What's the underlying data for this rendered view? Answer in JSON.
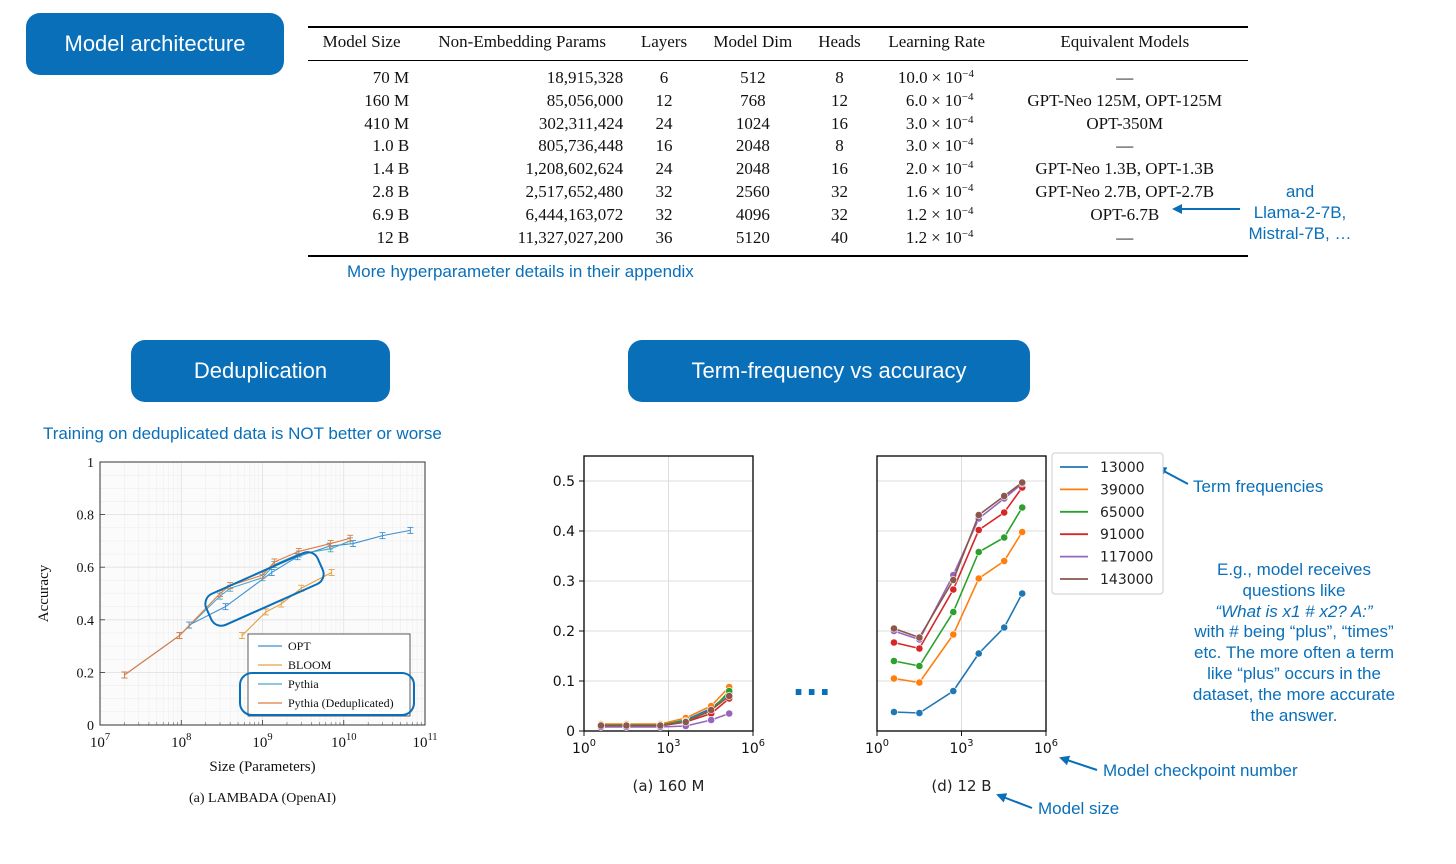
{
  "sections": {
    "model_architecture": "Model architecture",
    "deduplication": "Deduplication",
    "term_frequency": "Term-frequency vs accuracy"
  },
  "hyperparameters": {
    "headers": [
      "Model Size",
      "Non-Embedding Params",
      "Layers",
      "Model Dim",
      "Heads",
      "Learning Rate",
      "Equivalent Models"
    ],
    "lr_times": "×",
    "lr_base": "10",
    "lr_exp": "−4",
    "rows": [
      {
        "size": "70 M",
        "params": "18,915,328",
        "layers": "6",
        "dim": "512",
        "heads": "8",
        "lr": "10.0",
        "equiv": "—"
      },
      {
        "size": "160 M",
        "params": "85,056,000",
        "layers": "12",
        "dim": "768",
        "heads": "12",
        "lr": "6.0",
        "equiv": "GPT-Neo 125M, OPT-125M"
      },
      {
        "size": "410 M",
        "params": "302,311,424",
        "layers": "24",
        "dim": "1024",
        "heads": "16",
        "lr": "3.0",
        "equiv": "OPT-350M"
      },
      {
        "size": "1.0 B",
        "params": "805,736,448",
        "layers": "16",
        "dim": "2048",
        "heads": "8",
        "lr": "3.0",
        "equiv": "—"
      },
      {
        "size": "1.4 B",
        "params": "1,208,602,624",
        "layers": "24",
        "dim": "2048",
        "heads": "16",
        "lr": "2.0",
        "equiv": "GPT-Neo 1.3B, OPT-1.3B"
      },
      {
        "size": "2.8 B",
        "params": "2,517,652,480",
        "layers": "32",
        "dim": "2560",
        "heads": "32",
        "lr": "1.6",
        "equiv": "GPT-Neo 2.7B, OPT-2.7B"
      },
      {
        "size": "6.9 B",
        "params": "6,444,163,072",
        "layers": "32",
        "dim": "4096",
        "heads": "32",
        "lr": "1.2",
        "equiv": "OPT-6.7B"
      },
      {
        "size": "12 B",
        "params": "11,327,027,200",
        "layers": "36",
        "dim": "5120",
        "heads": "40",
        "lr": "1.2",
        "equiv": "—"
      }
    ]
  },
  "notes": {
    "appendix": "More hyperparameter details in their appendix",
    "and_models": [
      "and",
      "Llama-2-7B,",
      "Mistral-7B, …"
    ],
    "dedup": "Training on deduplicated data is NOT better or worse",
    "term_frequencies": "Term frequencies",
    "example": [
      "E.g., model receives",
      "questions like",
      "“What is x1 # x2? A:”",
      "with # being “plus”, “times”",
      "etc. The more often a term",
      "like “plus” occurs in the",
      "dataset, the more accurate",
      "the answer."
    ],
    "checkpoint": "Model checkpoint number",
    "model_size": "Model size",
    "ellipsis": "..."
  },
  "colors": {
    "accent": "#0a6fb9",
    "opt": "#3d8fd1",
    "bloom": "#e3a040",
    "pythia": "#4aa8c8",
    "pythia_dedup": "#e07a3e",
    "series": [
      "#1f77b4",
      "#ff7f0e",
      "#2ca02c",
      "#d62728",
      "#9467bd",
      "#8c564b"
    ]
  },
  "chart_data": [
    {
      "type": "line",
      "title": "(a) LAMBADA (OpenAI)",
      "xlabel": "Size (Parameters)",
      "ylabel": "Accuracy",
      "xscale": "log",
      "xlim": [
        10000000,
        100000000000
      ],
      "ylim": [
        0,
        1
      ],
      "xticks": [
        {
          "v": 10000000,
          "base": "10",
          "exp": "7"
        },
        {
          "v": 100000000,
          "base": "10",
          "exp": "8"
        },
        {
          "v": 1000000000,
          "base": "10",
          "exp": "9"
        },
        {
          "v": 10000000000,
          "base": "10",
          "exp": "10"
        },
        {
          "v": 100000000000,
          "base": "10",
          "exp": "11"
        }
      ],
      "yticks": [
        0.0,
        0.2,
        0.4,
        0.6,
        0.8,
        1.0
      ],
      "grid": true,
      "legend_position": "lower-right",
      "series": [
        {
          "name": "OPT",
          "color": "#3d8fd1",
          "x": [
            125000000,
            350000000,
            1300000000,
            2700000000,
            6700000000,
            13000000000,
            30000000000,
            66000000000
          ],
          "y": [
            0.38,
            0.45,
            0.58,
            0.64,
            0.68,
            0.69,
            0.72,
            0.74
          ]
        },
        {
          "name": "BLOOM",
          "color": "#e3a040",
          "x": [
            560000000,
            1100000000,
            1700000000,
            3000000000,
            7100000000
          ],
          "y": [
            0.34,
            0.43,
            0.46,
            0.52,
            0.58
          ]
        },
        {
          "name": "Pythia",
          "color": "#4aa8c8",
          "x": [
            20000000,
            95000000,
            300000000,
            400000000,
            1000000000,
            1400000000,
            2800000000,
            6900000000,
            12000000000
          ],
          "y": [
            0.19,
            0.34,
            0.49,
            0.52,
            0.56,
            0.61,
            0.65,
            0.67,
            0.7
          ]
        },
        {
          "name": "Pythia (Deduplicated)",
          "color": "#e07a3e",
          "x": [
            20000000,
            95000000,
            300000000,
            400000000,
            1000000000,
            1400000000,
            2800000000,
            6900000000,
            12000000000
          ],
          "y": [
            0.19,
            0.34,
            0.5,
            0.53,
            0.57,
            0.62,
            0.66,
            0.69,
            0.71
          ]
        }
      ]
    },
    {
      "type": "line",
      "title": "(a) 160 M",
      "xscale": "log",
      "xlim": [
        1,
        1000000
      ],
      "ylim": [
        0,
        0.55
      ],
      "xticks": [
        {
          "v": 1,
          "base": "10",
          "exp": "0"
        },
        {
          "v": 1000,
          "base": "10",
          "exp": "3"
        },
        {
          "v": 1000000,
          "base": "10",
          "exp": "6"
        }
      ],
      "yticks": [
        0.0,
        0.1,
        0.2,
        0.3,
        0.4,
        0.5
      ],
      "grid": true,
      "x": [
        4,
        32,
        512,
        4096,
        32768,
        143000
      ],
      "series": [
        {
          "name": "13000",
          "values": [
            0.012,
            0.012,
            0.012,
            0.022,
            0.045,
            0.075
          ]
        },
        {
          "name": "39000",
          "values": [
            0.014,
            0.014,
            0.014,
            0.026,
            0.05,
            0.088
          ]
        },
        {
          "name": "65000",
          "values": [
            0.012,
            0.012,
            0.012,
            0.02,
            0.04,
            0.08
          ]
        },
        {
          "name": "91000",
          "values": [
            0.01,
            0.01,
            0.01,
            0.018,
            0.035,
            0.065
          ]
        },
        {
          "name": "117000",
          "values": [
            0.008,
            0.008,
            0.008,
            0.01,
            0.022,
            0.035
          ]
        },
        {
          "name": "143000",
          "values": [
            0.011,
            0.011,
            0.011,
            0.018,
            0.042,
            0.07
          ]
        }
      ]
    },
    {
      "type": "line",
      "title": "(d) 12 B",
      "xscale": "log",
      "xlim": [
        1,
        1000000
      ],
      "ylim": [
        0,
        0.55
      ],
      "xticks": [
        {
          "v": 1,
          "base": "10",
          "exp": "0"
        },
        {
          "v": 1000,
          "base": "10",
          "exp": "3"
        },
        {
          "v": 1000000,
          "base": "10",
          "exp": "6"
        }
      ],
      "grid": true,
      "legend_position": "right-outside",
      "x": [
        4,
        32,
        512,
        4096,
        32768,
        143000
      ],
      "series": [
        {
          "name": "13000",
          "values": [
            0.038,
            0.036,
            0.08,
            0.155,
            0.207,
            0.275
          ]
        },
        {
          "name": "39000",
          "values": [
            0.105,
            0.097,
            0.193,
            0.305,
            0.34,
            0.398
          ]
        },
        {
          "name": "65000",
          "values": [
            0.14,
            0.13,
            0.238,
            0.358,
            0.387,
            0.447
          ]
        },
        {
          "name": "91000",
          "values": [
            0.177,
            0.165,
            0.283,
            0.402,
            0.437,
            0.487
          ]
        },
        {
          "name": "117000",
          "values": [
            0.2,
            0.183,
            0.312,
            0.425,
            0.465,
            0.495
          ]
        },
        {
          "name": "143000",
          "values": [
            0.205,
            0.187,
            0.302,
            0.432,
            0.47,
            0.497
          ]
        }
      ]
    }
  ]
}
